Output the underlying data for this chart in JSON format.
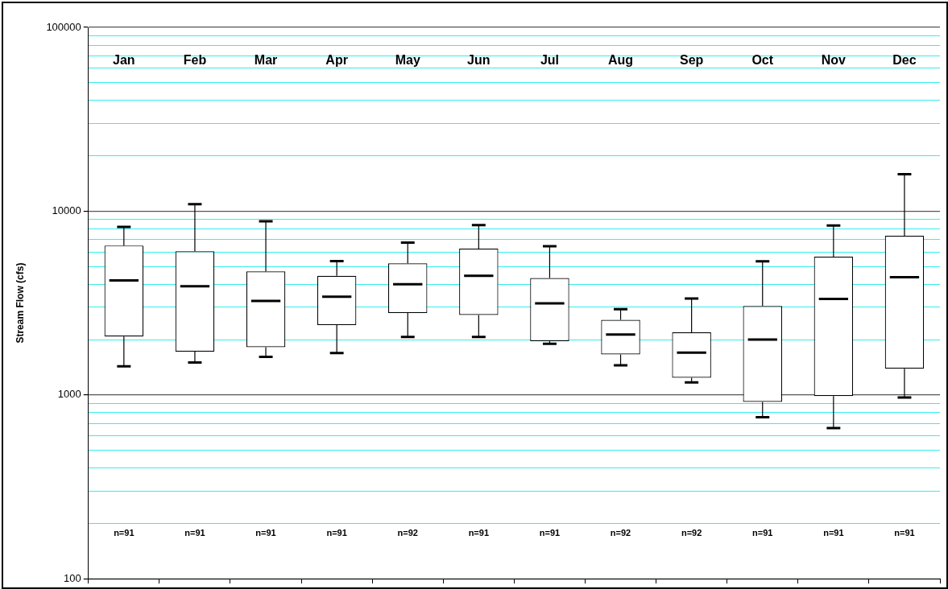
{
  "chart_data": {
    "type": "box",
    "ylabel": "Stream Flow (cfs)",
    "categories": [
      "Jan",
      "Feb",
      "Mar",
      "Apr",
      "May",
      "Jun",
      "Jul",
      "Aug",
      "Sep",
      "Oct",
      "Nov",
      "Dec"
    ],
    "boxes": [
      {
        "low": 1430,
        "q1": 2080,
        "median": 4200,
        "q3": 6500,
        "high": 8200
      },
      {
        "low": 1500,
        "q1": 1720,
        "median": 3900,
        "q3": 6050,
        "high": 10900
      },
      {
        "low": 1610,
        "q1": 1820,
        "median": 3250,
        "q3": 4700,
        "high": 8800
      },
      {
        "low": 1690,
        "q1": 2400,
        "median": 3420,
        "q3": 4450,
        "high": 5350
      },
      {
        "low": 2070,
        "q1": 2790,
        "median": 4000,
        "q3": 5200,
        "high": 6750
      },
      {
        "low": 2070,
        "q1": 2720,
        "median": 4450,
        "q3": 6250,
        "high": 8400
      },
      {
        "low": 1900,
        "q1": 1960,
        "median": 3150,
        "q3": 4330,
        "high": 6450
      },
      {
        "low": 1450,
        "q1": 1660,
        "median": 2130,
        "q3": 2560,
        "high": 2930
      },
      {
        "low": 1170,
        "q1": 1240,
        "median": 1700,
        "q3": 2190,
        "high": 3350
      },
      {
        "low": 757,
        "q1": 917,
        "median": 2000,
        "q3": 3050,
        "high": 5340
      },
      {
        "low": 660,
        "q1": 985,
        "median": 3330,
        "q3": 5650,
        "high": 8350
      },
      {
        "low": 968,
        "q1": 1390,
        "median": 4370,
        "q3": 7350,
        "high": 15900
      }
    ],
    "log": "y",
    "ylim": [
      100,
      100000
    ],
    "yticks": [
      100,
      {
        "value": 200,
        "label": null
      },
      {
        "value": 300,
        "label": null
      },
      {
        "value": 400,
        "label": null
      },
      {
        "value": 500,
        "label": null
      },
      {
        "value": 600,
        "label": null
      },
      {
        "value": 700,
        "label": null
      },
      {
        "value": 800,
        "label": null
      },
      {
        "value": 900,
        "label": null
      },
      1000,
      {
        "value": 2000,
        "label": null
      },
      {
        "value": 3000,
        "label": null
      },
      {
        "value": 4000,
        "label": null
      },
      {
        "value": 5000,
        "label": null
      },
      {
        "value": 6000,
        "label": null
      },
      {
        "value": 7000,
        "label": null
      },
      {
        "value": 8000,
        "label": null
      },
      {
        "value": 9000,
        "label": null
      },
      10000,
      {
        "value": 20000,
        "label": null
      },
      {
        "value": 30000,
        "label": null
      },
      {
        "value": 40000,
        "label": null
      },
      {
        "value": 50000,
        "label": null
      },
      {
        "value": 60000,
        "label": null
      },
      {
        "value": 70000,
        "label": null
      },
      {
        "value": 80000,
        "label": null
      },
      {
        "value": 90000,
        "label": null
      },
      100000
    ],
    "grid": "y",
    "legend": false,
    "annotations": [
      "n=91",
      "n=91",
      "n=91",
      "n=91",
      "n=92",
      "n=91",
      "n=91",
      "n=92",
      "n=92",
      "n=91",
      "n=91",
      "n=91"
    ]
  }
}
